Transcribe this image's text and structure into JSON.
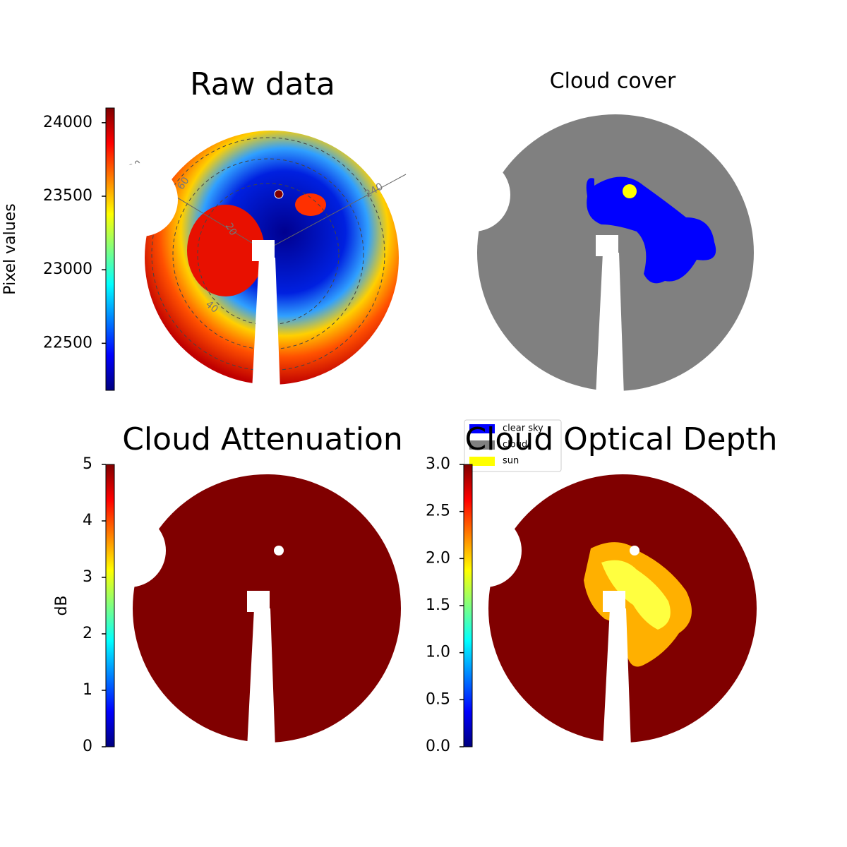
{
  "chart_data": [
    {
      "type": "image",
      "title": "Raw data",
      "colormap": "jet",
      "colorbar": {
        "label": "Pixel values",
        "lim": [
          22180,
          24100
        ],
        "ticks": [
          22500,
          23000,
          23500,
          24000
        ]
      },
      "polar_labels": [
        "120",
        "60",
        "240",
        "20",
        "40"
      ]
    },
    {
      "type": "image",
      "title": "Cloud cover",
      "legend": [
        {
          "name": "clear sky",
          "color": "#0000ff"
        },
        {
          "name": "cloud",
          "color": "#808080"
        },
        {
          "name": "sun",
          "color": "#ffff00"
        }
      ]
    },
    {
      "type": "image",
      "title": "Cloud Attenuation",
      "colormap": "jet",
      "colorbar": {
        "label": "dB",
        "lim": [
          0,
          5
        ],
        "ticks": [
          0,
          1,
          2,
          3,
          4,
          5
        ]
      }
    },
    {
      "type": "image",
      "title": "Cloud Optical Depth",
      "colormap": "jet",
      "colorbar": {
        "lim": [
          0,
          3
        ],
        "ticks": [
          {
            "value": 0,
            "label": "0.0"
          },
          0.5,
          {
            "value": 1,
            "label": "1.0"
          },
          1.5,
          {
            "value": 2,
            "label": "2.0"
          },
          2.5,
          {
            "value": 3,
            "label": "3.0"
          }
        ]
      }
    }
  ]
}
